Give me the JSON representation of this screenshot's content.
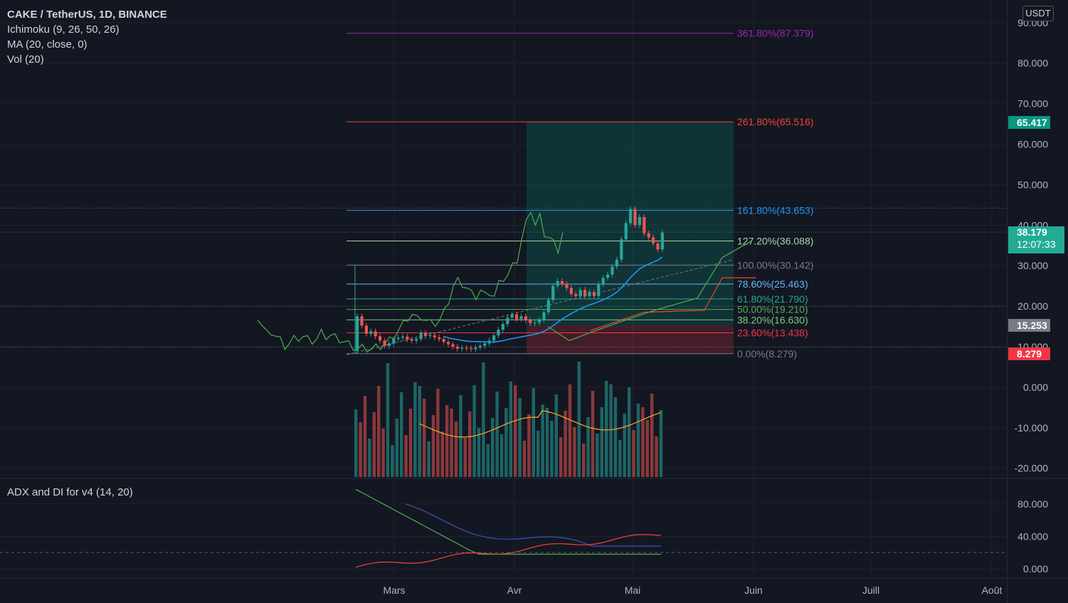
{
  "legend": {
    "title": "CAKE / TetherUS, 1D, BINANCE",
    "ichimoku": "Ichimoku (9, 26, 50, 26)",
    "ma": "MA (20, close, 0)",
    "vol": "Vol (20)"
  },
  "adx_title": "ADX and DI for v4 (14, 20)",
  "currency_button": "USDT",
  "price_axis": {
    "ticks": [
      "90.000",
      "80.000",
      "70.000",
      "60.000",
      "50.000",
      "40.000",
      "30.000",
      "20.000",
      "10.000",
      "0.000",
      "-10.000",
      "-20.000"
    ],
    "tick_values": [
      90,
      80,
      70,
      60,
      50,
      40,
      30,
      20,
      10,
      0,
      -10,
      -20
    ]
  },
  "adx_axis": {
    "ticks": [
      "80.000",
      "40.000",
      "0.000"
    ],
    "tick_values": [
      80,
      40,
      0
    ]
  },
  "time_axis": {
    "labels": [
      "Mars",
      "Avr",
      "Mai",
      "Juin",
      "Juill",
      "Août"
    ]
  },
  "tags": [
    {
      "label": "65.417",
      "value": 65.417,
      "color": "#089981"
    },
    {
      "label": "38.179",
      "value": 38.179,
      "color": "#22ab94",
      "sub": "12:07:33"
    },
    {
      "label": "15.253",
      "value": 15.253,
      "color": "#787b86"
    },
    {
      "label": "8.279",
      "value": 8.279,
      "color": "#f23645"
    }
  ],
  "chart_data": {
    "type": "candlestick",
    "fib_levels": [
      {
        "label": "361.80%(87.379)",
        "value": 87.379,
        "color": "#9c27b0"
      },
      {
        "label": "261.80%(65.516)",
        "value": 65.516,
        "color": "#f44336"
      },
      {
        "label": "161.80%(43.653)",
        "value": 43.653,
        "color": "#2196f3"
      },
      {
        "label": "127.20%(36.088)",
        "value": 36.088,
        "color": "#a5d6a7"
      },
      {
        "label": "100.00%(30.142)",
        "value": 30.142,
        "color": "#787b86"
      },
      {
        "label": "78.60%(25.463)",
        "value": 25.463,
        "color": "#64b5f6"
      },
      {
        "label": "61.80%(21.790)",
        "value": 21.79,
        "color": "#26a69a"
      },
      {
        "label": "50.00%(19.210)",
        "value": 19.21,
        "color": "#4caf50"
      },
      {
        "label": "38.20%(16.630)",
        "value": 16.63,
        "color": "#81c784"
      },
      {
        "label": "23.60%(13.438)",
        "value": 13.438,
        "color": "#f23645"
      },
      {
        "label": "0.00%(8.279)",
        "value": 8.279,
        "color": "#787b86"
      }
    ],
    "position": {
      "entry": 15.253,
      "target": 65.417,
      "stop": 8.279
    },
    "closes": [
      17.5,
      15.2,
      13.2,
      13.8,
      12.6,
      11.5,
      10.2,
      10.8,
      11.9,
      12.2,
      12.5,
      11.8,
      11.5,
      11.9,
      13.4,
      12.6,
      12.8,
      12.3,
      11.9,
      11.2,
      10.6,
      10.0,
      9.5,
      9.7,
      9.6,
      9.4,
      9.8,
      10.2,
      10.8,
      11.5,
      12.8,
      14.2,
      15.6,
      17.2,
      18.0,
      16.8,
      17.5,
      16.5,
      15.8,
      15.9,
      16.6,
      18.5,
      21.5,
      25.0,
      26.2,
      25.5,
      24.5,
      23.0,
      22.5,
      24.0,
      22.5,
      23.5,
      22.5,
      25.5,
      27.0,
      27.8,
      29.8,
      31.5,
      36.5,
      40.5,
      44.0,
      40.0,
      42.0,
      38.0,
      37.0,
      35.5,
      34.0,
      38.2
    ]
  }
}
